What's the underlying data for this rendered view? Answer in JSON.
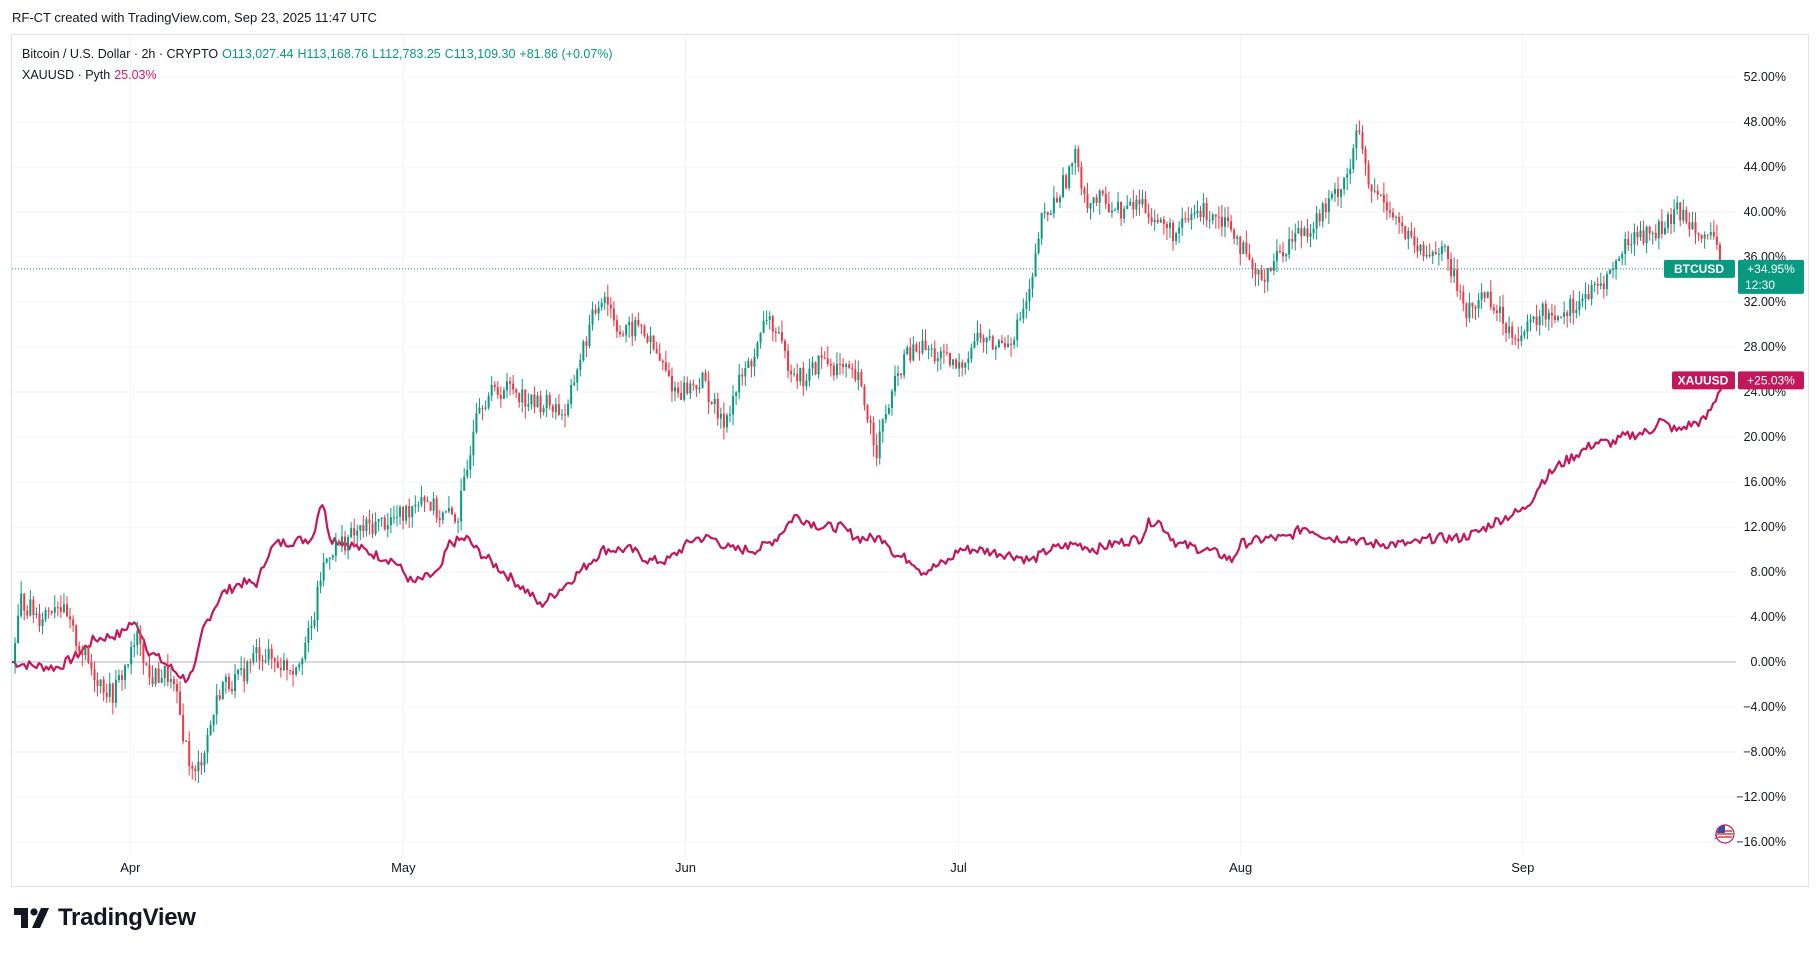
{
  "header": {
    "credit": "RF-CT created with TradingView.com, Sep 23, 2025 11:47 UTC"
  },
  "legend": {
    "main": {
      "symbol": "Bitcoin / U.S. Dollar · 2h · CRYPTO",
      "open": "O113,027.44",
      "high": "H113,168.76",
      "low": "L112,783.25",
      "close": "C113,109.30",
      "change": "+81.86 (+0.07%)"
    },
    "compare": {
      "symbol": "XAUUSD · Pyth",
      "value": "25.03%"
    }
  },
  "footer": {
    "logo_text": "TradingView"
  },
  "colors": {
    "up": "#089981",
    "down": "#f23645",
    "gold": "#c2185b",
    "grid": "#f0f3fa",
    "axis_text": "#131722"
  },
  "chart_data": {
    "type": "line",
    "y_unit": "%",
    "ylim": [
      -17.5,
      54
    ],
    "y_ticks": [
      "52.00%",
      "48.00%",
      "44.00%",
      "40.00%",
      "36.00%",
      "32.00%",
      "28.00%",
      "24.00%",
      "20.00%",
      "16.00%",
      "12.00%",
      "8.00%",
      "4.00%",
      "0.00%",
      "−4.00%",
      "−8.00%",
      "−12.00%",
      "−16.00%"
    ],
    "y_tick_values": [
      52,
      48,
      44,
      40,
      36,
      32,
      28,
      24,
      20,
      16,
      12,
      8,
      4,
      0,
      -4,
      -8,
      -12,
      -16
    ],
    "x_range": [
      "2025-03-19",
      "2025-09-23"
    ],
    "x_ticks": [
      {
        "label": "Apr",
        "date": "2025-04-01"
      },
      {
        "label": "May",
        "date": "2025-05-01"
      },
      {
        "label": "Jun",
        "date": "2025-06-01"
      },
      {
        "label": "Jul",
        "date": "2025-07-01"
      },
      {
        "label": "Aug",
        "date": "2025-08-01"
      },
      {
        "label": "Sep",
        "date": "2025-09-01"
      }
    ],
    "grid": true,
    "series": [
      {
        "name": "BTCUSD",
        "style": "candles",
        "last_label": "+34.95%",
        "countdown": "12:30",
        "last_value": 34.95,
        "points": [
          [
            "2025-03-19",
            0
          ],
          [
            "2025-03-20",
            5.5
          ],
          [
            "2025-03-22",
            4
          ],
          [
            "2025-03-24",
            5.5
          ],
          [
            "2025-03-26",
            2
          ],
          [
            "2025-03-28",
            -1
          ],
          [
            "2025-03-30",
            -3
          ],
          [
            "2025-04-01",
            0.5
          ],
          [
            "2025-04-02",
            2.5
          ],
          [
            "2025-04-03",
            -1.5
          ],
          [
            "2025-04-05",
            -1
          ],
          [
            "2025-04-06",
            -3
          ],
          [
            "2025-04-07",
            -7
          ],
          [
            "2025-04-08",
            -10.5
          ],
          [
            "2025-04-09",
            -8
          ],
          [
            "2025-04-10",
            -5
          ],
          [
            "2025-04-11",
            -2
          ],
          [
            "2025-04-13",
            -1.5
          ],
          [
            "2025-04-15",
            1
          ],
          [
            "2025-04-17",
            0
          ],
          [
            "2025-04-19",
            -0.5
          ],
          [
            "2025-04-21",
            3
          ],
          [
            "2025-04-22",
            8
          ],
          [
            "2025-04-23",
            10
          ],
          [
            "2025-04-25",
            11
          ],
          [
            "2025-04-27",
            12
          ],
          [
            "2025-04-29",
            12.5
          ],
          [
            "2025-05-01",
            13
          ],
          [
            "2025-05-03",
            15
          ],
          [
            "2025-05-05",
            13
          ],
          [
            "2025-05-07",
            13
          ],
          [
            "2025-05-08",
            17
          ],
          [
            "2025-05-09",
            23
          ],
          [
            "2025-05-11",
            24
          ],
          [
            "2025-05-13",
            24.5
          ],
          [
            "2025-05-15",
            23
          ],
          [
            "2025-05-17",
            23
          ],
          [
            "2025-05-19",
            22
          ],
          [
            "2025-05-20",
            26
          ],
          [
            "2025-05-22",
            31
          ],
          [
            "2025-05-23",
            33
          ],
          [
            "2025-05-25",
            29
          ],
          [
            "2025-05-27",
            30
          ],
          [
            "2025-05-29",
            27
          ],
          [
            "2025-05-31",
            24
          ],
          [
            "2025-06-03",
            25
          ],
          [
            "2025-06-05",
            21
          ],
          [
            "2025-06-07",
            25
          ],
          [
            "2025-06-09",
            28
          ],
          [
            "2025-06-10",
            31
          ],
          [
            "2025-06-12",
            27
          ],
          [
            "2025-06-14",
            25
          ],
          [
            "2025-06-16",
            27
          ],
          [
            "2025-06-18",
            26
          ],
          [
            "2025-06-20",
            25
          ],
          [
            "2025-06-22",
            19
          ],
          [
            "2025-06-23",
            22
          ],
          [
            "2025-06-25",
            27
          ],
          [
            "2025-06-27",
            28
          ],
          [
            "2025-06-29",
            27
          ],
          [
            "2025-07-01",
            26
          ],
          [
            "2025-07-03",
            29
          ],
          [
            "2025-07-05",
            28
          ],
          [
            "2025-07-07",
            29
          ],
          [
            "2025-07-09",
            33
          ],
          [
            "2025-07-10",
            39
          ],
          [
            "2025-07-11",
            40
          ],
          [
            "2025-07-14",
            45
          ],
          [
            "2025-07-15",
            41
          ],
          [
            "2025-07-17",
            41
          ],
          [
            "2025-07-19",
            40
          ],
          [
            "2025-07-21",
            41
          ],
          [
            "2025-07-23",
            39
          ],
          [
            "2025-07-25",
            38
          ],
          [
            "2025-07-27",
            40
          ],
          [
            "2025-07-29",
            40
          ],
          [
            "2025-07-31",
            39
          ],
          [
            "2025-08-02",
            35
          ],
          [
            "2025-08-03",
            34
          ],
          [
            "2025-08-05",
            36
          ],
          [
            "2025-08-07",
            38
          ],
          [
            "2025-08-09",
            39
          ],
          [
            "2025-08-11",
            41
          ],
          [
            "2025-08-13",
            44
          ],
          [
            "2025-08-14",
            47.5
          ],
          [
            "2025-08-15",
            42
          ],
          [
            "2025-08-17",
            41
          ],
          [
            "2025-08-19",
            38
          ],
          [
            "2025-08-21",
            36
          ],
          [
            "2025-08-23",
            37
          ],
          [
            "2025-08-25",
            33
          ],
          [
            "2025-08-26",
            31
          ],
          [
            "2025-08-28",
            33
          ],
          [
            "2025-08-30",
            30
          ],
          [
            "2025-09-01",
            29
          ],
          [
            "2025-09-03",
            31
          ],
          [
            "2025-09-05",
            31
          ],
          [
            "2025-09-07",
            32
          ],
          [
            "2025-09-09",
            33
          ],
          [
            "2025-09-11",
            35
          ],
          [
            "2025-09-13",
            38
          ],
          [
            "2025-09-15",
            38
          ],
          [
            "2025-09-17",
            39
          ],
          [
            "2025-09-18",
            40
          ],
          [
            "2025-09-20",
            39
          ],
          [
            "2025-09-22",
            37
          ],
          [
            "2025-09-23",
            34.95
          ]
        ]
      },
      {
        "name": "XAUUSD",
        "style": "line",
        "last_label": "+25.03%",
        "last_value": 25.03,
        "points": [
          [
            "2025-03-19",
            0
          ],
          [
            "2025-03-21",
            -0.3
          ],
          [
            "2025-03-24",
            -0.5
          ],
          [
            "2025-03-26",
            0.5
          ],
          [
            "2025-03-28",
            2
          ],
          [
            "2025-03-31",
            2.5
          ],
          [
            "2025-04-01",
            3.5
          ],
          [
            "2025-04-02",
            3
          ],
          [
            "2025-04-03",
            1
          ],
          [
            "2025-04-07",
            -1.5
          ],
          [
            "2025-04-08",
            -1
          ],
          [
            "2025-04-09",
            3
          ],
          [
            "2025-04-11",
            6
          ],
          [
            "2025-04-13",
            7
          ],
          [
            "2025-04-15",
            7
          ],
          [
            "2025-04-16",
            9.5
          ],
          [
            "2025-04-17",
            10.5
          ],
          [
            "2025-04-21",
            11
          ],
          [
            "2025-04-22",
            14.5
          ],
          [
            "2025-04-23",
            11
          ],
          [
            "2025-04-25",
            10.5
          ],
          [
            "2025-04-28",
            9.5
          ],
          [
            "2025-04-30",
            9
          ],
          [
            "2025-05-02",
            7
          ],
          [
            "2025-05-05",
            8
          ],
          [
            "2025-05-06",
            10.5
          ],
          [
            "2025-05-08",
            11
          ],
          [
            "2025-05-09",
            10
          ],
          [
            "2025-05-12",
            8
          ],
          [
            "2025-05-15",
            6
          ],
          [
            "2025-05-16",
            5
          ],
          [
            "2025-05-19",
            7
          ],
          [
            "2025-05-21",
            8.5
          ],
          [
            "2025-05-23",
            10
          ],
          [
            "2025-05-26",
            10
          ],
          [
            "2025-05-28",
            9
          ],
          [
            "2025-05-30",
            9
          ],
          [
            "2025-06-02",
            11
          ],
          [
            "2025-06-04",
            11
          ],
          [
            "2025-06-06",
            10
          ],
          [
            "2025-06-09",
            10
          ],
          [
            "2025-06-11",
            11
          ],
          [
            "2025-06-13",
            13
          ],
          [
            "2025-06-16",
            12
          ],
          [
            "2025-06-18",
            12
          ],
          [
            "2025-06-20",
            11
          ],
          [
            "2025-06-23",
            11
          ],
          [
            "2025-06-24",
            9.5
          ],
          [
            "2025-06-26",
            9
          ],
          [
            "2025-06-27",
            8
          ],
          [
            "2025-06-30",
            9
          ],
          [
            "2025-07-01",
            10
          ],
          [
            "2025-07-03",
            10
          ],
          [
            "2025-07-07",
            9.5
          ],
          [
            "2025-07-09",
            9
          ],
          [
            "2025-07-11",
            10
          ],
          [
            "2025-07-14",
            10.5
          ],
          [
            "2025-07-16",
            10
          ],
          [
            "2025-07-18",
            10.5
          ],
          [
            "2025-07-21",
            11
          ],
          [
            "2025-07-22",
            12.5
          ],
          [
            "2025-07-23",
            12.5
          ],
          [
            "2025-07-25",
            10.5
          ],
          [
            "2025-07-28",
            10
          ],
          [
            "2025-07-30",
            9.5
          ],
          [
            "2025-07-31",
            9
          ],
          [
            "2025-08-01",
            10.5
          ],
          [
            "2025-08-04",
            11
          ],
          [
            "2025-08-06",
            11
          ],
          [
            "2025-08-08",
            12
          ],
          [
            "2025-08-11",
            11
          ],
          [
            "2025-08-13",
            11
          ],
          [
            "2025-08-15",
            10.5
          ],
          [
            "2025-08-18",
            10.5
          ],
          [
            "2025-08-20",
            10.5
          ],
          [
            "2025-08-22",
            11
          ],
          [
            "2025-08-25",
            11
          ],
          [
            "2025-08-27",
            11.5
          ],
          [
            "2025-08-29",
            12.5
          ],
          [
            "2025-09-01",
            13.5
          ],
          [
            "2025-09-02",
            14.5
          ],
          [
            "2025-09-03",
            16
          ],
          [
            "2025-09-05",
            17.5
          ],
          [
            "2025-09-08",
            19
          ],
          [
            "2025-09-09",
            19.5
          ],
          [
            "2025-09-11",
            19.5
          ],
          [
            "2025-09-12",
            20
          ],
          [
            "2025-09-15",
            20.5
          ],
          [
            "2025-09-16",
            21.5
          ],
          [
            "2025-09-17",
            21
          ],
          [
            "2025-09-18",
            20.5
          ],
          [
            "2025-09-19",
            21
          ],
          [
            "2025-09-21",
            21.5
          ],
          [
            "2025-09-22",
            23
          ],
          [
            "2025-09-23",
            25.03
          ]
        ]
      }
    ]
  }
}
